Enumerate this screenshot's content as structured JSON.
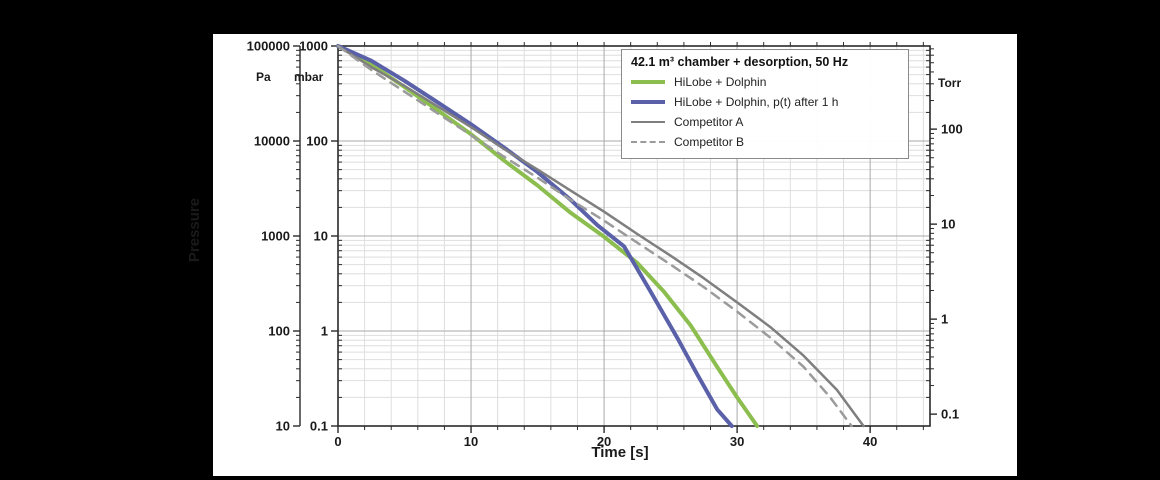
{
  "chart_data": {
    "type": "line",
    "xlabel": "Time [s]",
    "ylabel": "Pressure",
    "xlim": [
      0,
      44.5
    ],
    "x_ticks": [
      "0",
      "10",
      "20",
      "30",
      "40"
    ],
    "x_minor_step_s": 2,
    "y_scale": "log",
    "ylim_mbar": [
      1000,
      0.1
    ],
    "grid": "major+minor",
    "y_axes": [
      {
        "unit": "Pa",
        "ticks": [
          "100000",
          "10000",
          "1000",
          "100",
          "10"
        ]
      },
      {
        "unit": "mbar",
        "ticks": [
          "1000",
          "100",
          "10",
          "1",
          "0.1"
        ]
      },
      {
        "unit": "Torr",
        "ticks": [
          "100",
          "10",
          "1",
          "0.1"
        ]
      }
    ],
    "legend": {
      "position": "top-right",
      "title": "42.1 m³ chamber + desorption, 50 Hz"
    },
    "series": [
      {
        "name": "HiLobe + Dolphin",
        "color": "#8cbe4f",
        "dash": "solid",
        "width": 4,
        "points_t_s_p_mbar": [
          [
            0,
            1000
          ],
          [
            2.5,
            640
          ],
          [
            5,
            370
          ],
          [
            7.5,
            210
          ],
          [
            10,
            118
          ],
          [
            12.5,
            62
          ],
          [
            15,
            34
          ],
          [
            17.5,
            17.5
          ],
          [
            20,
            9.8
          ],
          [
            22.5,
            5.2
          ],
          [
            24.5,
            2.6
          ],
          [
            26.5,
            1.15
          ],
          [
            28.5,
            0.42
          ],
          [
            30,
            0.2
          ],
          [
            31.5,
            0.1
          ]
        ]
      },
      {
        "name": "HiLobe + Dolphin, p(t) after 1 h",
        "color": "#5a61a9",
        "dash": "solid",
        "width": 4,
        "points_t_s_p_mbar": [
          [
            0,
            1000
          ],
          [
            2.5,
            700
          ],
          [
            5,
            430
          ],
          [
            7.5,
            255
          ],
          [
            10,
            150
          ],
          [
            12.5,
            85
          ],
          [
            15,
            47
          ],
          [
            17.5,
            24
          ],
          [
            19.5,
            13
          ],
          [
            21.5,
            7.8
          ],
          [
            23.5,
            2.6
          ],
          [
            25.5,
            0.85
          ],
          [
            27,
            0.35
          ],
          [
            28.5,
            0.15
          ],
          [
            29.6,
            0.1
          ]
        ]
      },
      {
        "name": "Competitor A",
        "color": "#7f7f7f",
        "dash": "solid",
        "width": 2.5,
        "points_t_s_p_mbar": [
          [
            0,
            1000
          ],
          [
            2.5,
            600
          ],
          [
            5,
            380
          ],
          [
            7.5,
            230
          ],
          [
            10,
            140
          ],
          [
            12.5,
            82
          ],
          [
            15,
            50
          ],
          [
            17.5,
            30
          ],
          [
            20,
            18
          ],
          [
            22.5,
            10.5
          ],
          [
            25,
            6.2
          ],
          [
            27.5,
            3.6
          ],
          [
            30,
            2.0
          ],
          [
            32.5,
            1.1
          ],
          [
            35,
            0.55
          ],
          [
            37.5,
            0.24
          ],
          [
            39.5,
            0.1
          ]
        ]
      },
      {
        "name": "Competitor B",
        "color": "#9b9b9b",
        "dash": "dashed",
        "width": 2.5,
        "points_t_s_p_mbar": [
          [
            0,
            1000
          ],
          [
            2.5,
            560
          ],
          [
            5,
            330
          ],
          [
            7.5,
            195
          ],
          [
            10,
            115
          ],
          [
            12.5,
            68
          ],
          [
            15,
            41
          ],
          [
            17.5,
            24
          ],
          [
            20,
            14.5
          ],
          [
            22.5,
            8.5
          ],
          [
            25,
            5.0
          ],
          [
            27.5,
            2.9
          ],
          [
            30,
            1.6
          ],
          [
            32.5,
            0.85
          ],
          [
            35,
            0.42
          ],
          [
            37,
            0.2
          ],
          [
            38.6,
            0.1
          ]
        ]
      }
    ],
    "colors": {
      "grid_major": "#a8a8a8",
      "grid_minor": "#dedede",
      "axis": "#2a2a2a",
      "tick_text": "#1a1a1a"
    }
  }
}
